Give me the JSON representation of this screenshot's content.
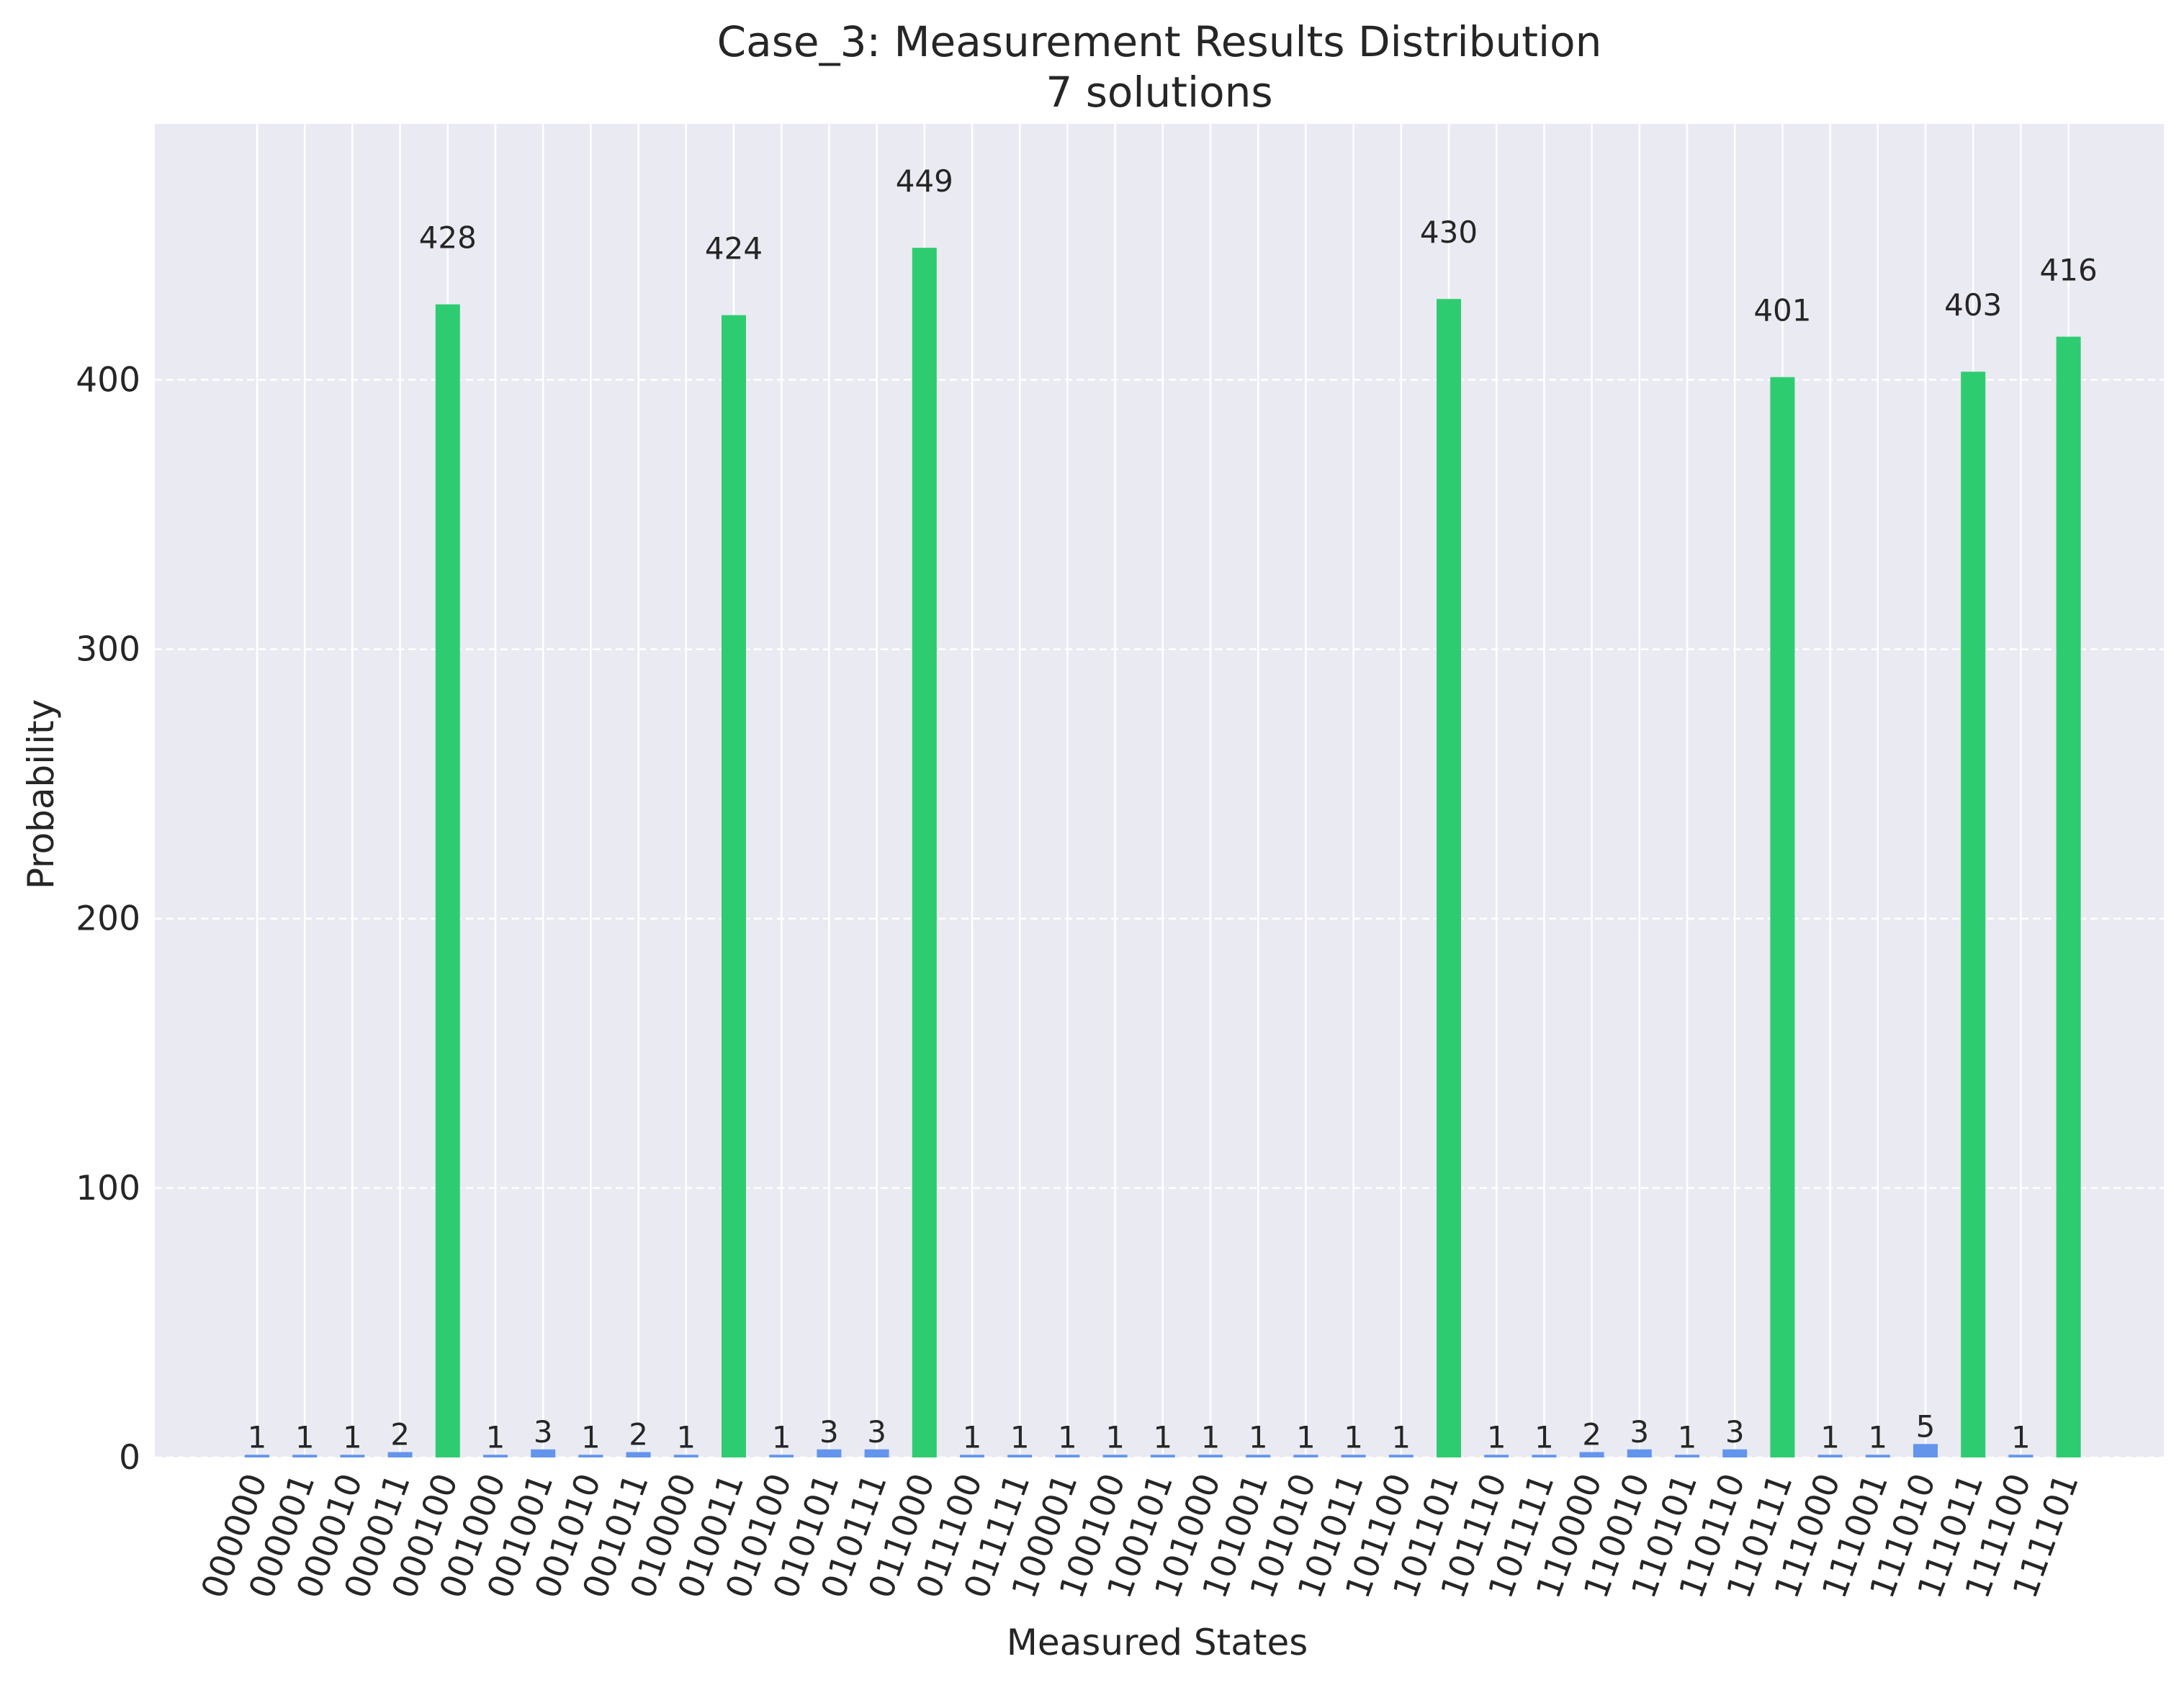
{
  "chart_data": {
    "type": "bar",
    "title": "Case_3: Measurement Results Distribution",
    "subtitle": "7 solutions",
    "xlabel": "Measured States",
    "ylabel": "Probability",
    "ylim": [
      0,
      495
    ],
    "yticks": [
      0,
      100,
      200,
      300,
      400
    ],
    "grid": true,
    "categories": [
      "000000",
      "000001",
      "000010",
      "000011",
      "000100",
      "001000",
      "001001",
      "001010",
      "001011",
      "010000",
      "010011",
      "010100",
      "010101",
      "010111",
      "011000",
      "011100",
      "011111",
      "100001",
      "100100",
      "100101",
      "101000",
      "101001",
      "101010",
      "101011",
      "101100",
      "101101",
      "101110",
      "101111",
      "110000",
      "110010",
      "110101",
      "110110",
      "110111",
      "111000",
      "111001",
      "111010",
      "111011",
      "111100",
      "111101"
    ],
    "values": [
      1,
      1,
      1,
      2,
      428,
      1,
      3,
      1,
      2,
      1,
      424,
      1,
      3,
      3,
      449,
      1,
      1,
      1,
      1,
      1,
      1,
      1,
      1,
      1,
      1,
      430,
      1,
      1,
      2,
      3,
      1,
      3,
      401,
      1,
      1,
      5,
      403,
      1,
      416
    ],
    "solutions": [
      "000100",
      "010011",
      "011000",
      "101101",
      "110111",
      "111011",
      "111101"
    ],
    "colors": {
      "solution": "#2ecc71",
      "other": "#6495ed",
      "background": "#eaeaf2",
      "grid": "#ffffff",
      "text": "#262626"
    }
  }
}
